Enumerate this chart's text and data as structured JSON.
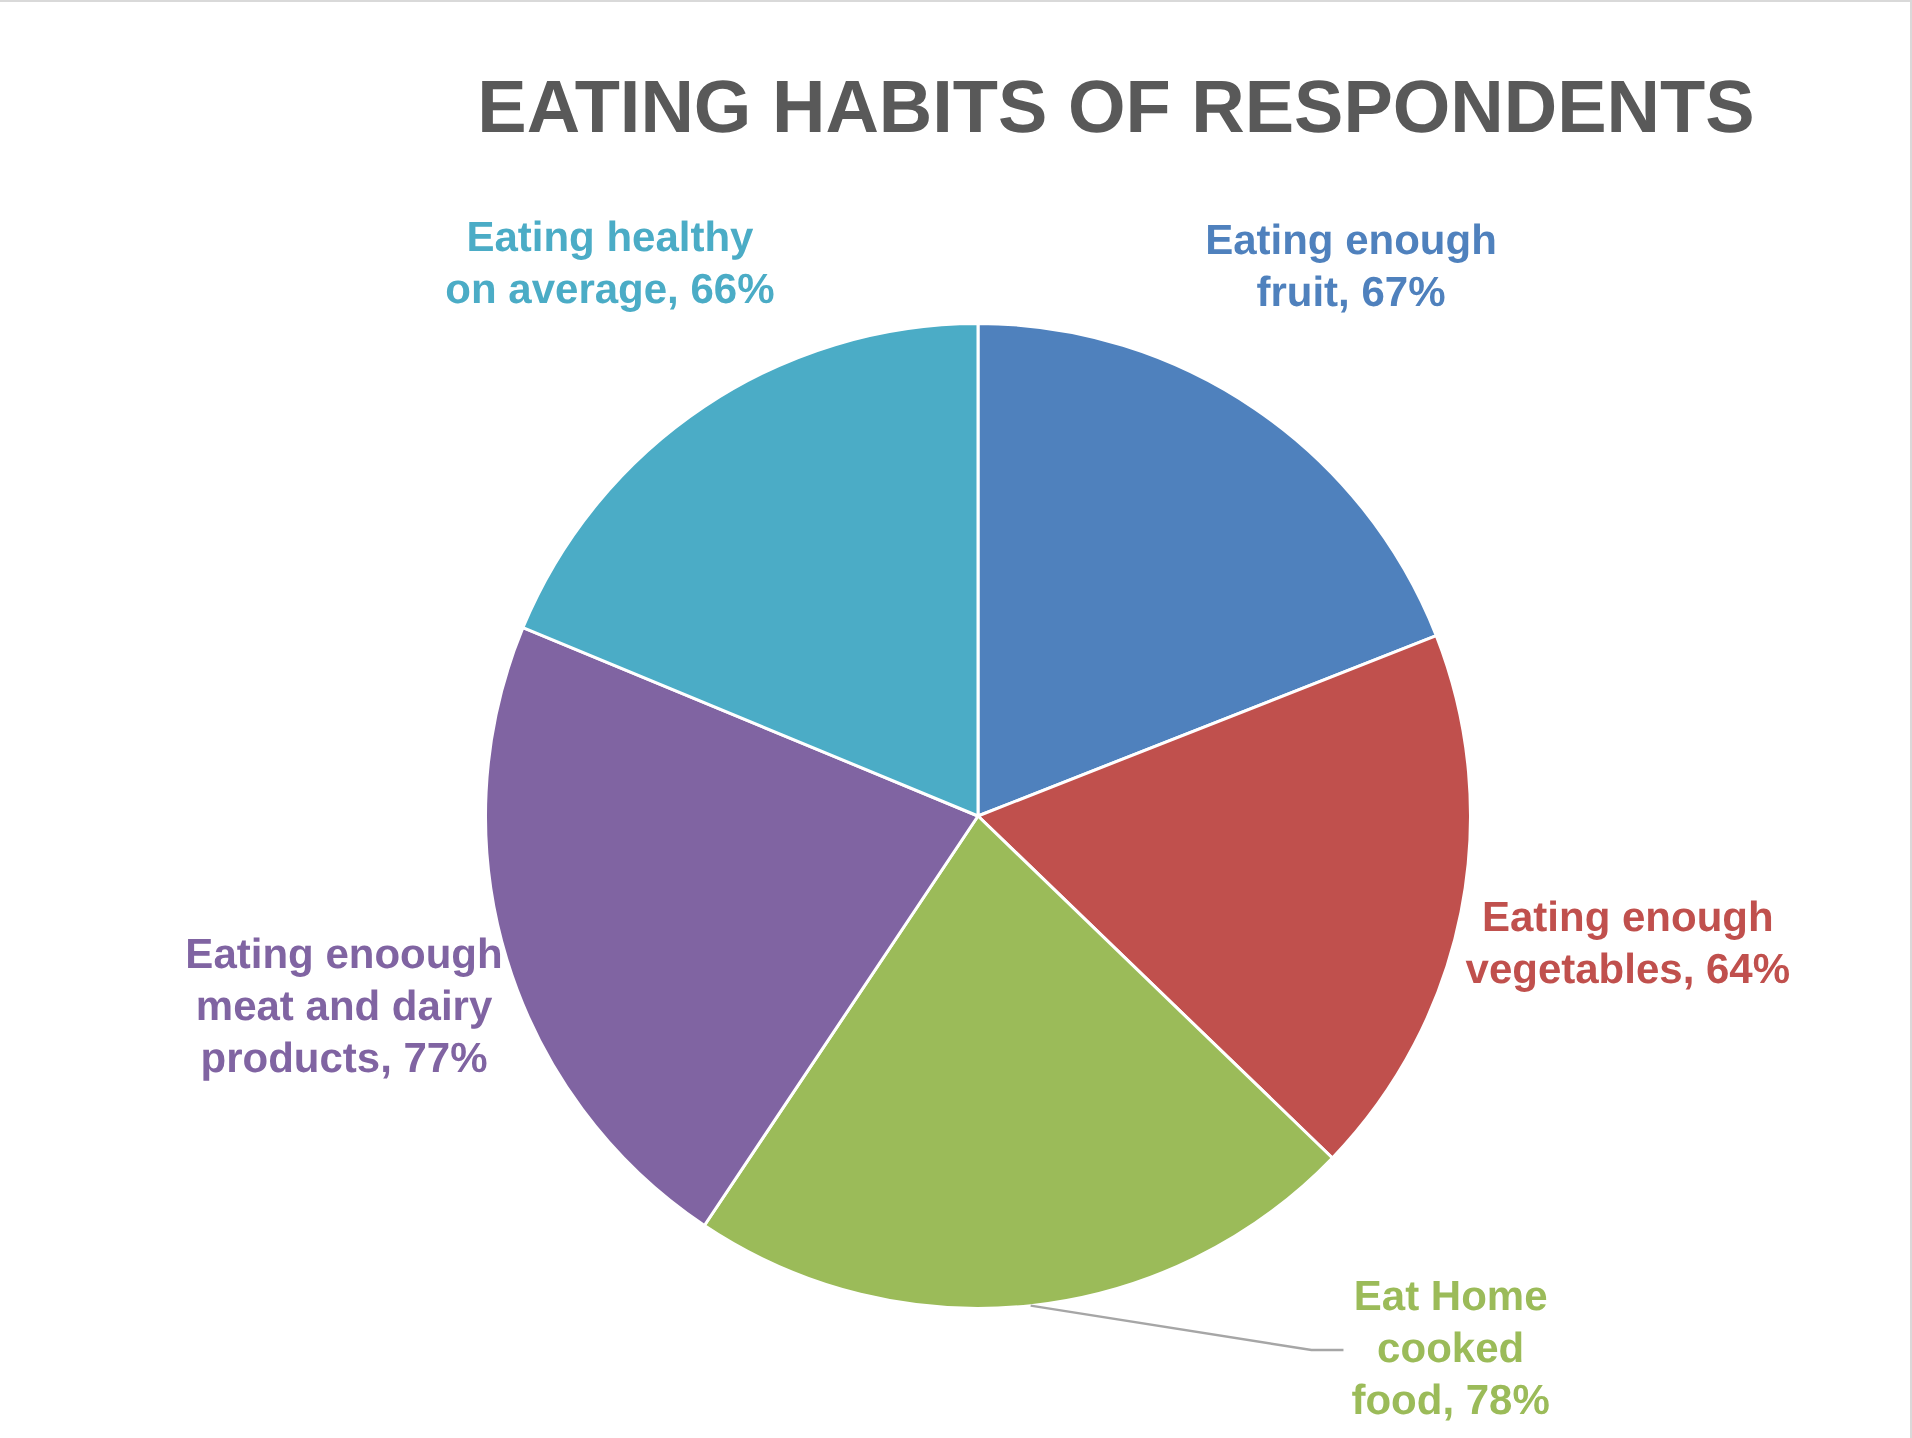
{
  "chart_data": {
    "type": "pie",
    "title": "EATING HABITS OF RESPONDENTS",
    "categories": [
      "Eating enough fruit",
      "Eating enough vegetables",
      "Eat Home cooked food",
      "Eating enoough meat and dairy products",
      "Eating healthy on average"
    ],
    "values": [
      67,
      64,
      78,
      77,
      66
    ],
    "colors": [
      "#4f81bd",
      "#c0504d",
      "#9bbb59",
      "#8064a2",
      "#4bacc6"
    ],
    "value_labels": [
      "67%",
      "64%",
      "78%",
      "77%",
      "66%"
    ]
  }
}
